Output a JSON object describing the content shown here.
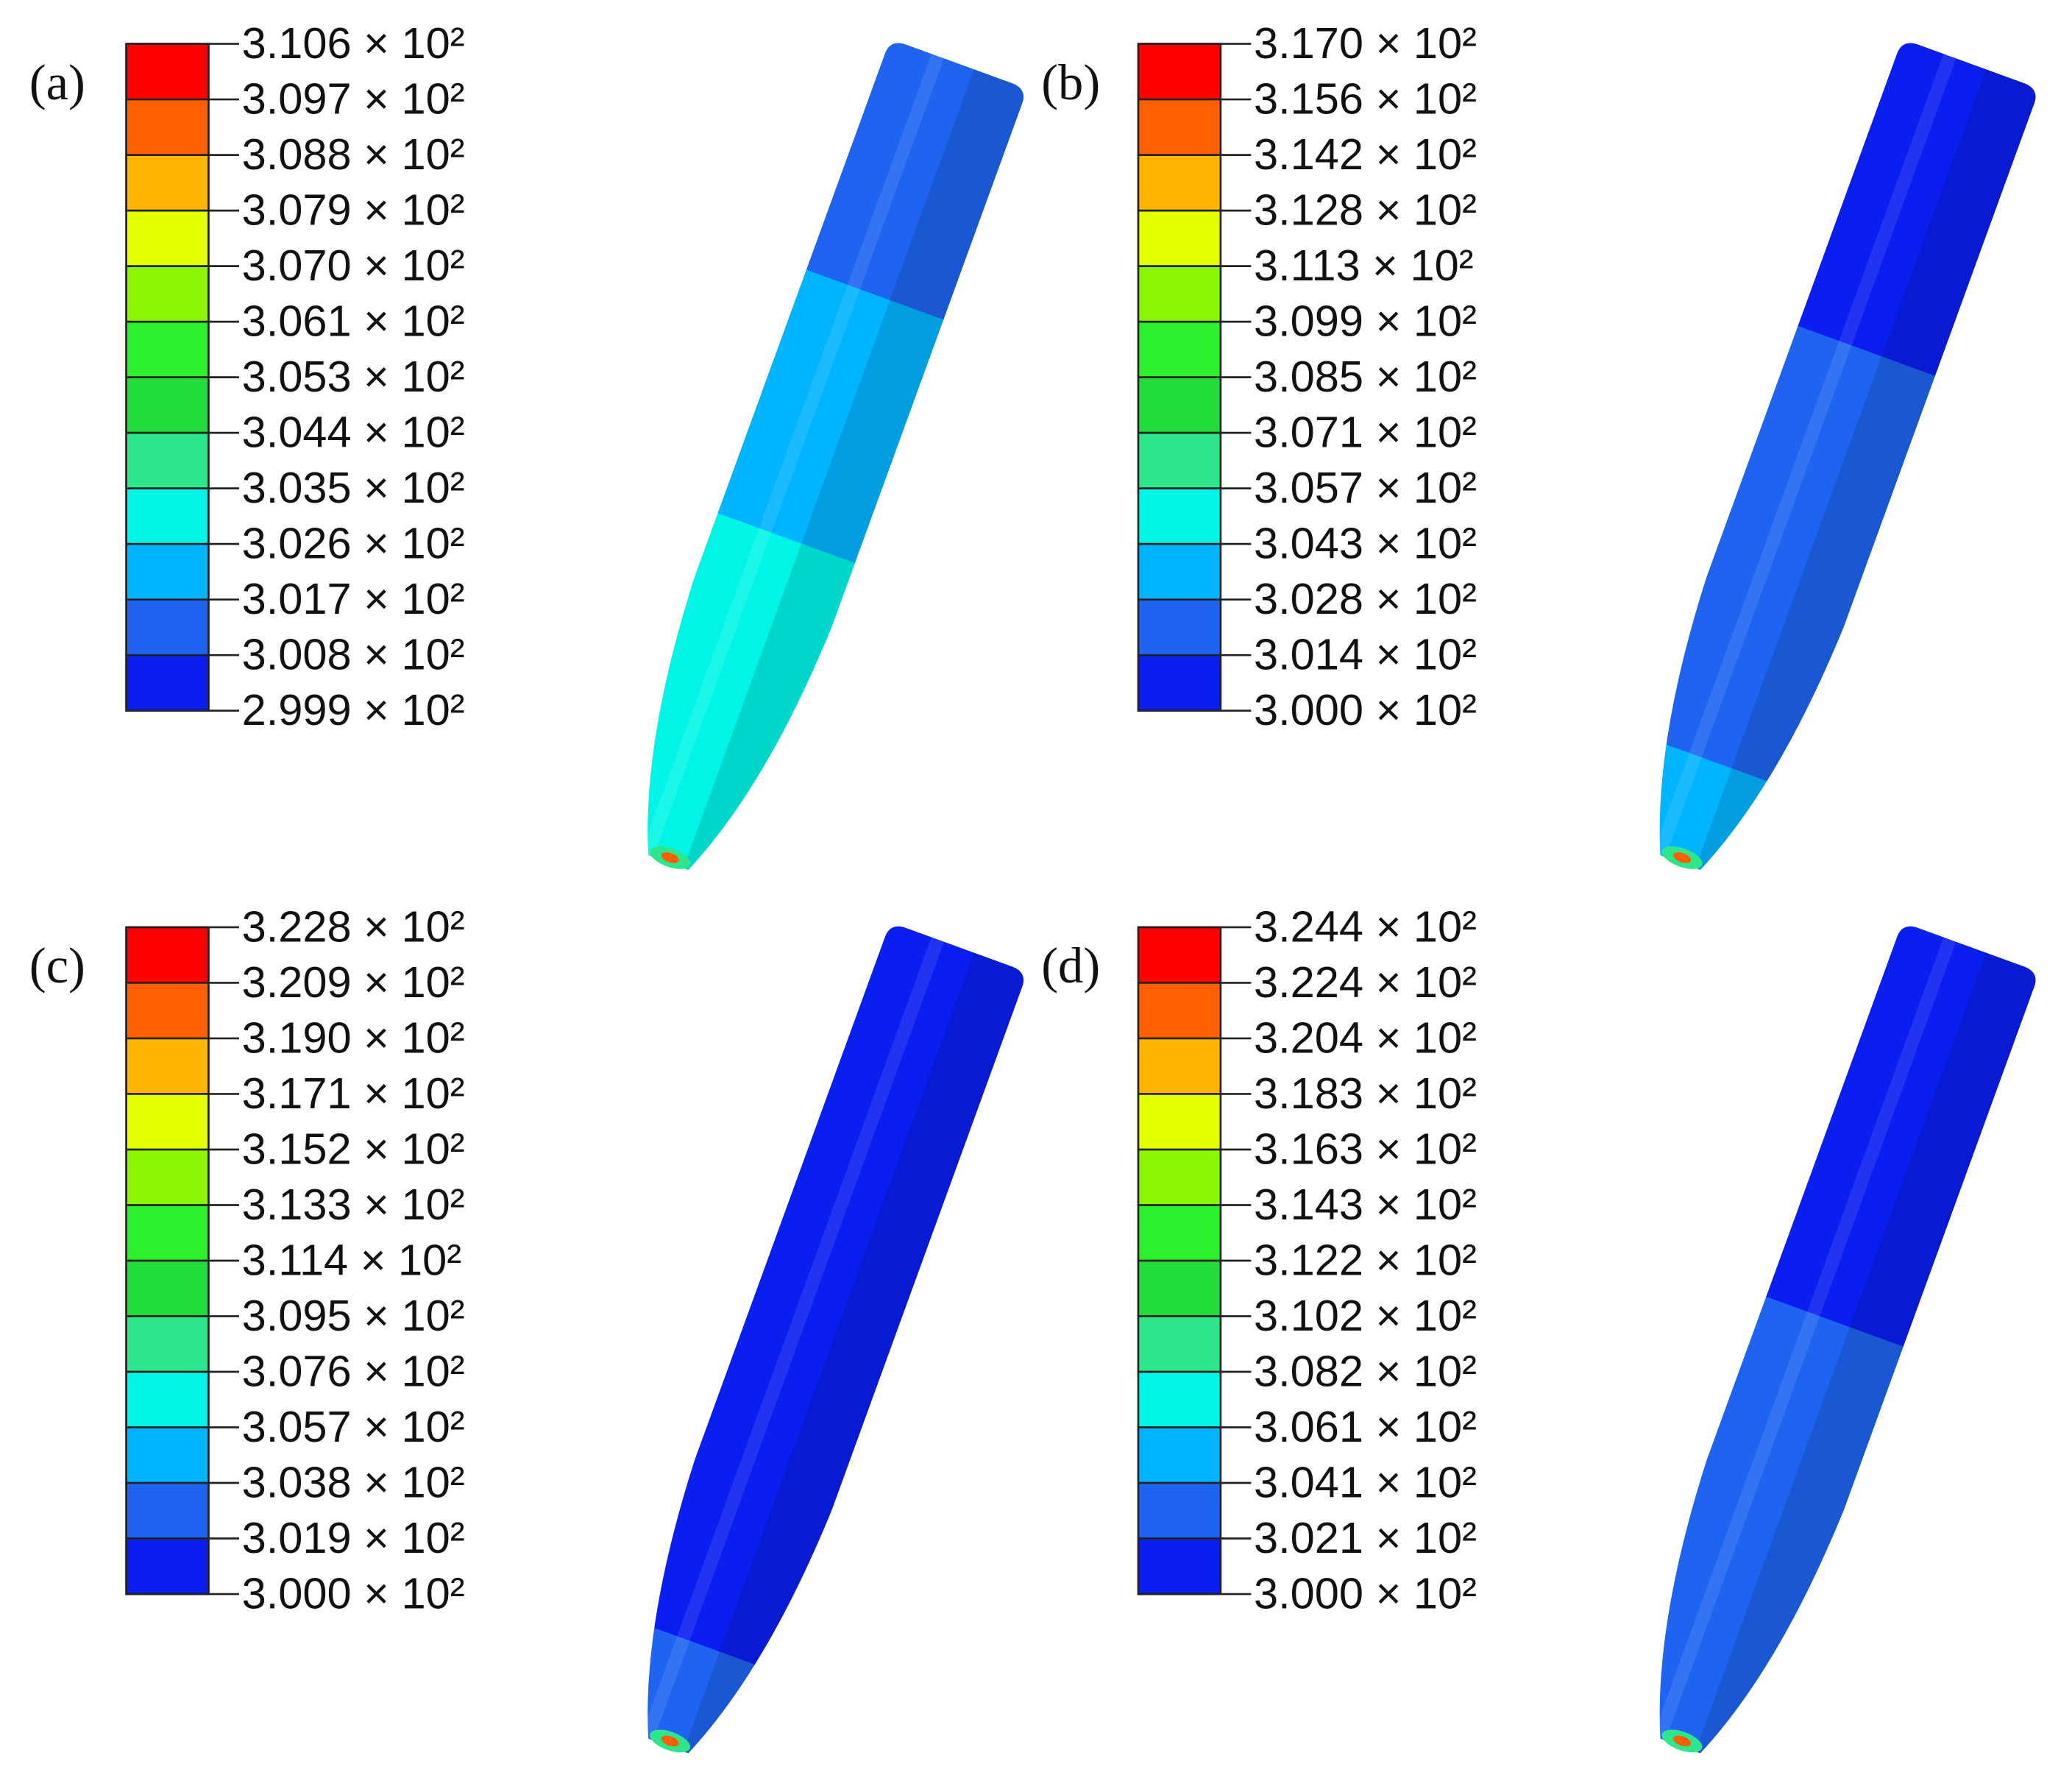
{
  "colors": [
    "#ff0000",
    "#ff5f00",
    "#ffb400",
    "#e6ff00",
    "#8cf500",
    "#2cf02c",
    "#22dc3c",
    "#2ee68c",
    "#00f5e6",
    "#00b4ff",
    "#1e64f0",
    "#0a1ef0"
  ],
  "panels": [
    {
      "label": "(a)",
      "legend": [
        "3.106 × 10²",
        "3.097 × 10²",
        "3.088 × 10²",
        "3.079 × 10²",
        "3.070 × 10²",
        "3.061 × 10²",
        "3.053 × 10²",
        "3.044 × 10²",
        "3.035 × 10²",
        "3.026 × 10²",
        "3.017 × 10²",
        "3.008 × 10²",
        "2.999 × 10²"
      ]
    },
    {
      "label": "(b)",
      "legend": [
        "3.170 × 10²",
        "3.156 × 10²",
        "3.142 × 10²",
        "3.128 × 10²",
        "3.113 × 10²",
        "3.099 × 10²",
        "3.085 × 10²",
        "3.071 × 10²",
        "3.057 × 10²",
        "3.043 × 10²",
        "3.028 × 10²",
        "3.014 × 10²",
        "3.000 × 10²"
      ]
    },
    {
      "label": "(c)",
      "legend": [
        "3.228 × 10²",
        "3.209 × 10²",
        "3.190 × 10²",
        "3.171 × 10²",
        "3.152 × 10²",
        "3.133 × 10²",
        "3.114 × 10²",
        "3.095 × 10²",
        "3.076 × 10²",
        "3.057 × 10²",
        "3.038 × 10²",
        "3.019 × 10²",
        "3.000 × 10²"
      ]
    },
    {
      "label": "(d)",
      "legend": [
        "3.244 × 10²",
        "3.224 × 10²",
        "3.204 × 10²",
        "3.183 × 10²",
        "3.163 × 10²",
        "3.143 × 10²",
        "3.122 × 10²",
        "3.102 × 10²",
        "3.082 × 10²",
        "3.061 × 10²",
        "3.041 × 10²",
        "3.021 × 10²",
        "3.000 × 10²"
      ]
    }
  ]
}
